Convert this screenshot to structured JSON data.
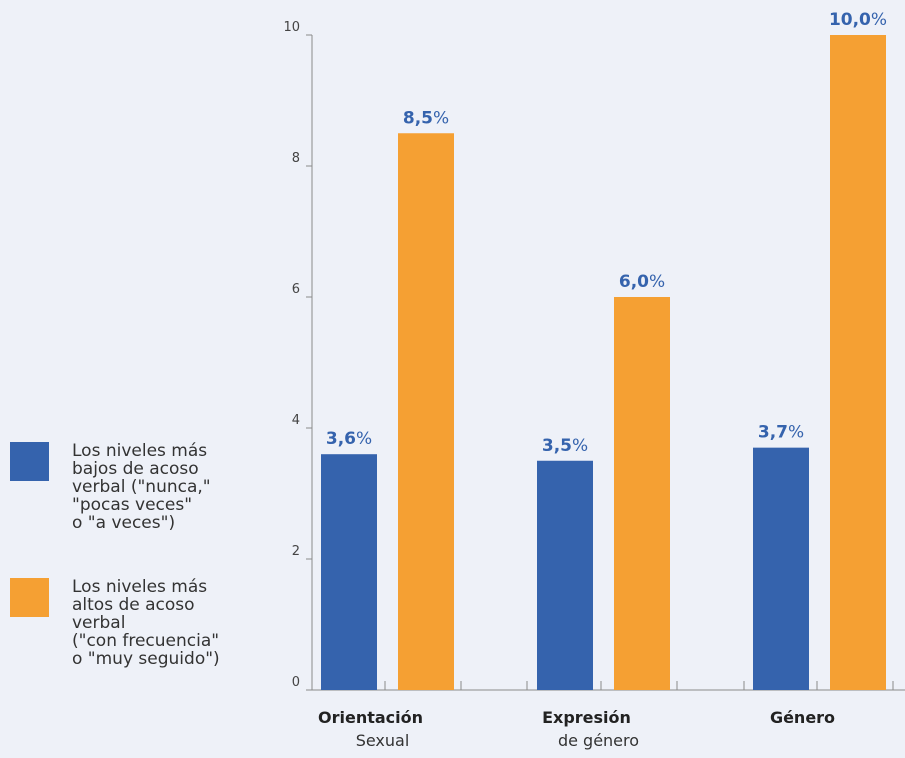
{
  "chart_data": {
    "type": "bar",
    "categories": [
      {
        "bold": "Orientación",
        "light": "Sexual"
      },
      {
        "bold": "Expresión",
        "light": "de género"
      },
      {
        "bold": "Género",
        "light": ""
      }
    ],
    "series": [
      {
        "name": "Los niveles más\nbajos de acoso\nverbal (\"nunca,\"\n\"pocas veces\"\no \"a veces\")",
        "color": "#3563ad",
        "values": [
          3.6,
          3.5,
          3.7
        ],
        "labels": [
          "3,6",
          "3,5",
          "3,7"
        ]
      },
      {
        "name": "Los niveles más\naltos de acoso\nverbal\n(\"con frecuencia\"\no \"muy seguido\")",
        "color": "#f5a033",
        "values": [
          8.5,
          6.0,
          10.0
        ],
        "labels": [
          "8,5",
          "6,0",
          "10,0"
        ]
      }
    ],
    "value_suffix": "%",
    "ylim": [
      0,
      10
    ],
    "yticks": [
      "0",
      "2",
      "4",
      "6",
      "8",
      "10"
    ],
    "label_color": "#3563ad",
    "legend_position": "left",
    "grid": false,
    "title": "",
    "xlabel": "",
    "ylabel": ""
  }
}
